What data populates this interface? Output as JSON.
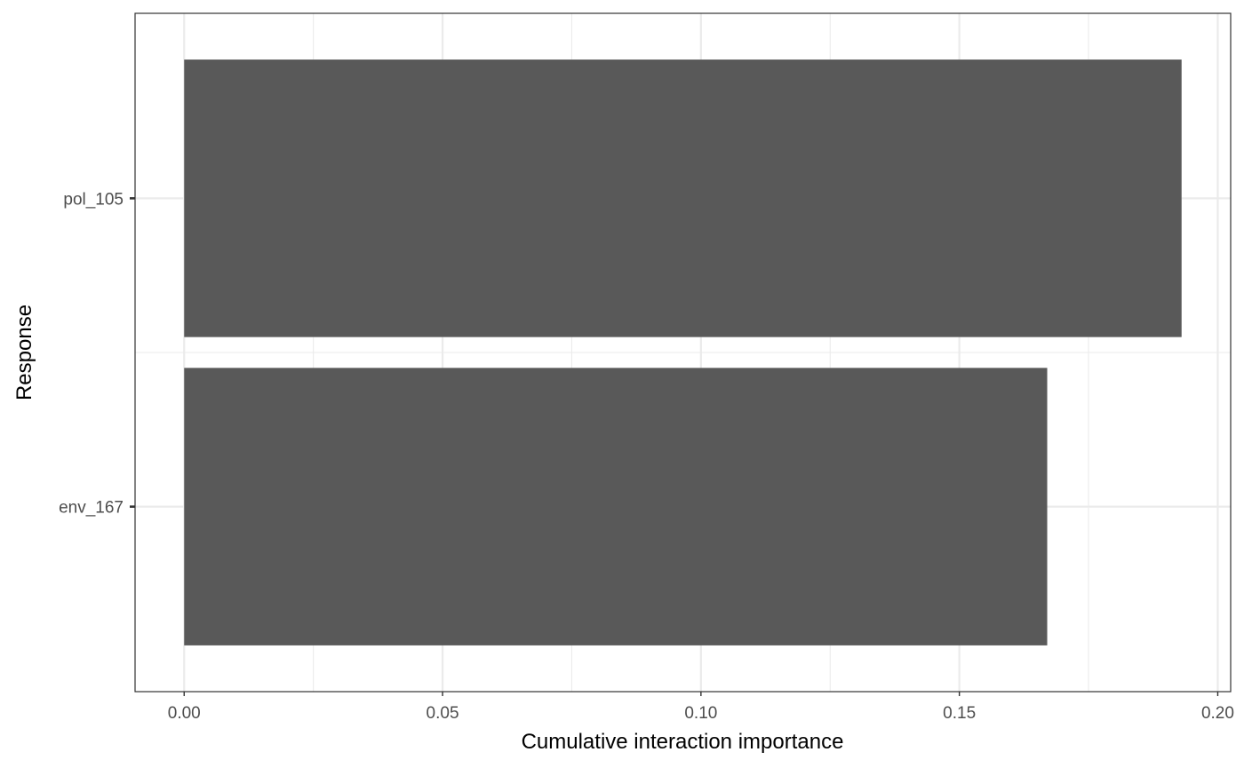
{
  "chart_data": {
    "type": "bar",
    "orientation": "horizontal",
    "categories": [
      "env_167",
      "pol_105"
    ],
    "values": [
      0.167,
      0.193
    ],
    "xlabel": "Cumulative interaction importance",
    "ylabel": "Response",
    "xlim": [
      -0.0095,
      0.2025
    ],
    "x_ticks": [
      0.0,
      0.05,
      0.1,
      0.15,
      0.2
    ],
    "x_tick_labels": [
      "0.00",
      "0.05",
      "0.10",
      "0.15",
      "0.20"
    ],
    "grid": true,
    "bar_color": "#595959",
    "grid_color": "#ebebeb",
    "panel_border_color": "#333333"
  }
}
